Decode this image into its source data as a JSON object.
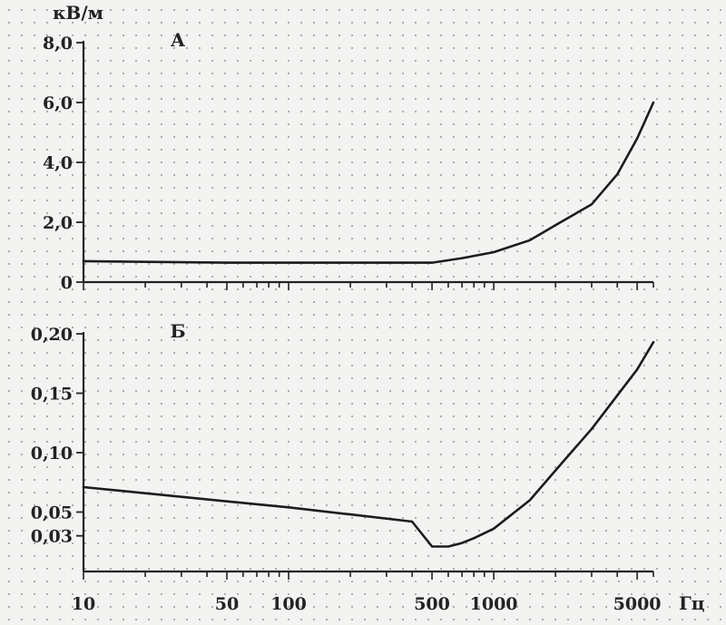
{
  "chart_data": [
    {
      "type": "line",
      "panel_label": "А",
      "ylabel": "кВ/м",
      "xscale": "log",
      "xlim": [
        10,
        6000
      ],
      "ylim": [
        0,
        8.0
      ],
      "yticks": [
        {
          "value": 0,
          "label": "0"
        },
        {
          "value": 2.0,
          "label": "2,0"
        },
        {
          "value": 4.0,
          "label": "4,0"
        },
        {
          "value": 6.0,
          "label": "6,0"
        },
        {
          "value": 8.0,
          "label": "8,0"
        }
      ],
      "series": [
        {
          "x": [
            10,
            50,
            100,
            300,
            500,
            700,
            1000,
            1500,
            2000,
            3000,
            4000,
            5000,
            6000
          ],
          "y": [
            0.7,
            0.65,
            0.65,
            0.65,
            0.65,
            0.8,
            1.0,
            1.4,
            1.9,
            2.6,
            3.6,
            4.8,
            6.0
          ]
        }
      ]
    },
    {
      "type": "line",
      "panel_label": "Б",
      "xlabel": "Гц",
      "xscale": "log",
      "xlim": [
        10,
        6000
      ],
      "ylim": [
        0,
        0.2
      ],
      "yticks": [
        {
          "value": 0.03,
          "label": "0,03"
        },
        {
          "value": 0.05,
          "label": "0,05"
        },
        {
          "value": 0.1,
          "label": "0,10"
        },
        {
          "value": 0.15,
          "label": "0,15"
        },
        {
          "value": 0.2,
          "label": "0,20"
        }
      ],
      "xticks": [
        {
          "value": 10,
          "label": "10"
        },
        {
          "value": 50,
          "label": "50"
        },
        {
          "value": 100,
          "label": "100"
        },
        {
          "value": 500,
          "label": "500"
        },
        {
          "value": 1000,
          "label": "1000"
        },
        {
          "value": 5000,
          "label": "5000"
        }
      ],
      "series": [
        {
          "x": [
            10,
            50,
            100,
            200,
            400,
            500,
            600,
            700,
            800,
            1000,
            1500,
            2000,
            3000,
            5000,
            6000
          ],
          "y": [
            0.071,
            0.059,
            0.054,
            0.048,
            0.042,
            0.021,
            0.021,
            0.024,
            0.028,
            0.036,
            0.06,
            0.085,
            0.12,
            0.17,
            0.193
          ]
        }
      ]
    }
  ]
}
